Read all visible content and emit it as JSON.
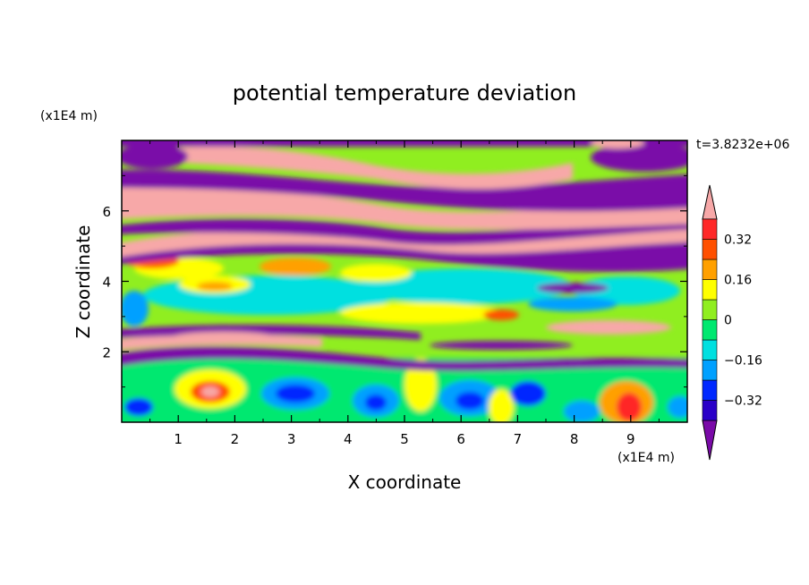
{
  "chart_data": {
    "type": "heatmap",
    "title": "potential temperature deviation",
    "xlabel": "X coordinate",
    "ylabel": "Z coordinate",
    "x_unit": "(x1E4 m)",
    "y_unit": "(x1E4 m)",
    "time_label": "t=3.8232e+06",
    "xlim": [
      0,
      10
    ],
    "ylim": [
      0,
      8
    ],
    "x_ticks": [
      1,
      2,
      3,
      4,
      5,
      6,
      7,
      8,
      9
    ],
    "x_tick_labels": [
      "1",
      "2",
      "3",
      "4",
      "5",
      "6",
      "7",
      "8",
      "9"
    ],
    "y_ticks": [
      2,
      4,
      6
    ],
    "y_tick_labels": [
      "2",
      "4",
      "6"
    ],
    "colorbar": {
      "levels": [
        -0.4,
        -0.32,
        -0.24,
        -0.16,
        -0.08,
        0,
        0.08,
        0.16,
        0.24,
        0.32,
        0.4
      ],
      "labels": [
        {
          "value": 0.32,
          "text": "0.32"
        },
        {
          "value": 0.16,
          "text": "0.16"
        },
        {
          "value": 0,
          "text": "0"
        },
        {
          "value": -0.16,
          "text": "−0.16"
        },
        {
          "value": -0.32,
          "text": "−0.32"
        }
      ],
      "colors": [
        "#7a0aa8",
        "#2a00c8",
        "#0028ff",
        "#00a0ff",
        "#00e0e0",
        "#00e870",
        "#90ee20",
        "#ffff00",
        "#ffa000",
        "#ff5000",
        "#ff2828",
        "#f7a8a8"
      ],
      "extend": "both"
    },
    "grid": false
  }
}
